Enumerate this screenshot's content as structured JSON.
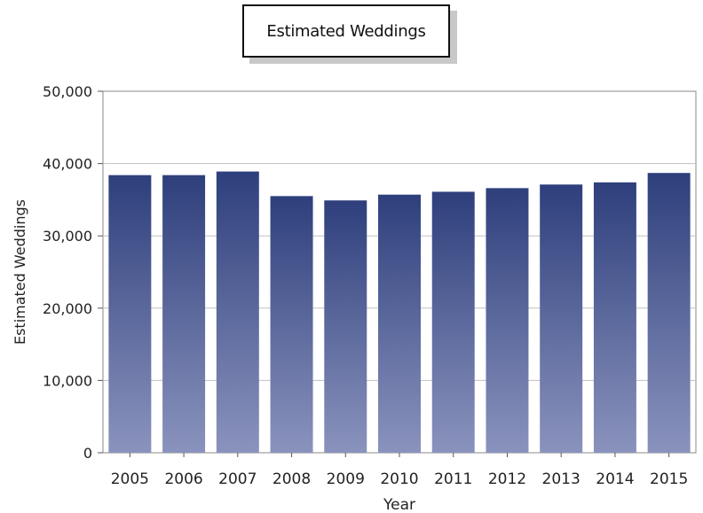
{
  "chart_data": {
    "type": "bar",
    "title": "Estimated Weddings",
    "xlabel": "Year",
    "ylabel": "Estimated Weddings",
    "categories": [
      "2005",
      "2006",
      "2007",
      "2008",
      "2009",
      "2010",
      "2011",
      "2012",
      "2013",
      "2014",
      "2015"
    ],
    "series": [
      {
        "name": "Estimated Weddings",
        "values": [
          38400,
          38400,
          38900,
          35500,
          34900,
          35700,
          36100,
          36600,
          37100,
          37400,
          38700
        ]
      }
    ],
    "ylim": [
      0,
      50000
    ],
    "yticks": [
      "0",
      "10,000",
      "20,000",
      "30,000",
      "40,000",
      "50,000"
    ],
    "grid": true,
    "legend_position": "top-center",
    "colors": {
      "bar_top": "#2e3f7c",
      "bar_bottom": "#8a93bd",
      "grid": "#c0c0c0"
    }
  }
}
